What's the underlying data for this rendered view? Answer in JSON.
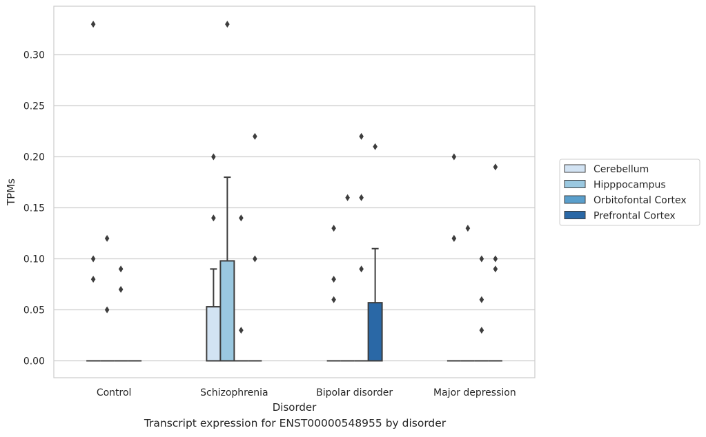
{
  "caption": "Transcript expression for ENST00000548955 by disorder",
  "chart_data": {
    "type": "box",
    "title": "",
    "xlabel": "Disorder",
    "ylabel": "TPMs",
    "ylim": [
      -0.016,
      0.345
    ],
    "yticks": [
      0.0,
      0.05,
      0.1,
      0.15,
      0.2,
      0.25,
      0.3
    ],
    "ytick_labels": [
      "0.00",
      "0.05",
      "0.10",
      "0.15",
      "0.20",
      "0.25",
      "0.30"
    ],
    "grid": "horizontal",
    "legend_position": "right",
    "categories": [
      "Control",
      "Schizophrenia",
      "Bipolar disorder",
      "Major depression"
    ],
    "series": [
      {
        "name": "Cerebellum",
        "color": "#d2e3f3",
        "boxes": [
          {
            "q1": 0,
            "median": 0,
            "q3": 0,
            "whisker_low": 0,
            "whisker_high": 0,
            "outliers": [
              0.33,
              0.1,
              0.08
            ]
          },
          {
            "q1": 0,
            "median": 0,
            "q3": 0.053,
            "whisker_low": 0,
            "whisker_high": 0.09,
            "outliers": [
              0.2,
              0.14
            ]
          },
          {
            "q1": 0,
            "median": 0,
            "q3": 0,
            "whisker_low": 0,
            "whisker_high": 0,
            "outliers": [
              0.13,
              0.08,
              0.06
            ]
          },
          {
            "q1": 0,
            "median": 0,
            "q3": 0,
            "whisker_low": 0,
            "whisker_high": 0,
            "outliers": [
              0.2,
              0.12,
              0.12
            ]
          }
        ]
      },
      {
        "name": "Hipppocampus",
        "color": "#9ac8e0",
        "boxes": [
          {
            "q1": 0,
            "median": 0,
            "q3": 0,
            "whisker_low": 0,
            "whisker_high": 0,
            "outliers": [
              0.12,
              0.05
            ]
          },
          {
            "q1": 0,
            "median": 0,
            "q3": 0.098,
            "whisker_low": 0,
            "whisker_high": 0.18,
            "outliers": [
              0.33
            ]
          },
          {
            "q1": 0,
            "median": 0,
            "q3": 0,
            "whisker_low": 0,
            "whisker_high": 0,
            "outliers": [
              0.16
            ]
          },
          {
            "q1": 0,
            "median": 0,
            "q3": 0,
            "whisker_low": 0,
            "whisker_high": 0,
            "outliers": [
              0.13
            ]
          }
        ]
      },
      {
        "name": "Orbitofontal Cortex",
        "color": "#5a9fcc",
        "boxes": [
          {
            "q1": 0,
            "median": 0,
            "q3": 0,
            "whisker_low": 0,
            "whisker_high": 0,
            "outliers": [
              0.09,
              0.07
            ]
          },
          {
            "q1": 0,
            "median": 0,
            "q3": 0,
            "whisker_low": 0,
            "whisker_high": 0,
            "outliers": [
              0.14,
              0.03
            ]
          },
          {
            "q1": 0,
            "median": 0,
            "q3": 0,
            "whisker_low": 0,
            "whisker_high": 0,
            "outliers": [
              0.22,
              0.16,
              0.09
            ]
          },
          {
            "q1": 0,
            "median": 0,
            "q3": 0,
            "whisker_low": 0,
            "whisker_high": 0,
            "outliers": [
              0.1,
              0.06,
              0.03
            ]
          }
        ]
      },
      {
        "name": "Prefrontal Cortex",
        "color": "#2a68a6",
        "boxes": [
          {
            "q1": 0,
            "median": 0,
            "q3": 0,
            "whisker_low": 0,
            "whisker_high": 0,
            "outliers": []
          },
          {
            "q1": 0,
            "median": 0,
            "q3": 0,
            "whisker_low": 0,
            "whisker_high": 0,
            "outliers": [
              0.22,
              0.1
            ]
          },
          {
            "q1": 0,
            "median": 0,
            "q3": 0.057,
            "whisker_low": 0,
            "whisker_high": 0.11,
            "outliers": [
              0.21
            ]
          },
          {
            "q1": 0,
            "median": 0,
            "q3": 0,
            "whisker_low": 0,
            "whisker_high": 0,
            "outliers": [
              0.19,
              0.1,
              0.09
            ]
          }
        ]
      }
    ]
  }
}
